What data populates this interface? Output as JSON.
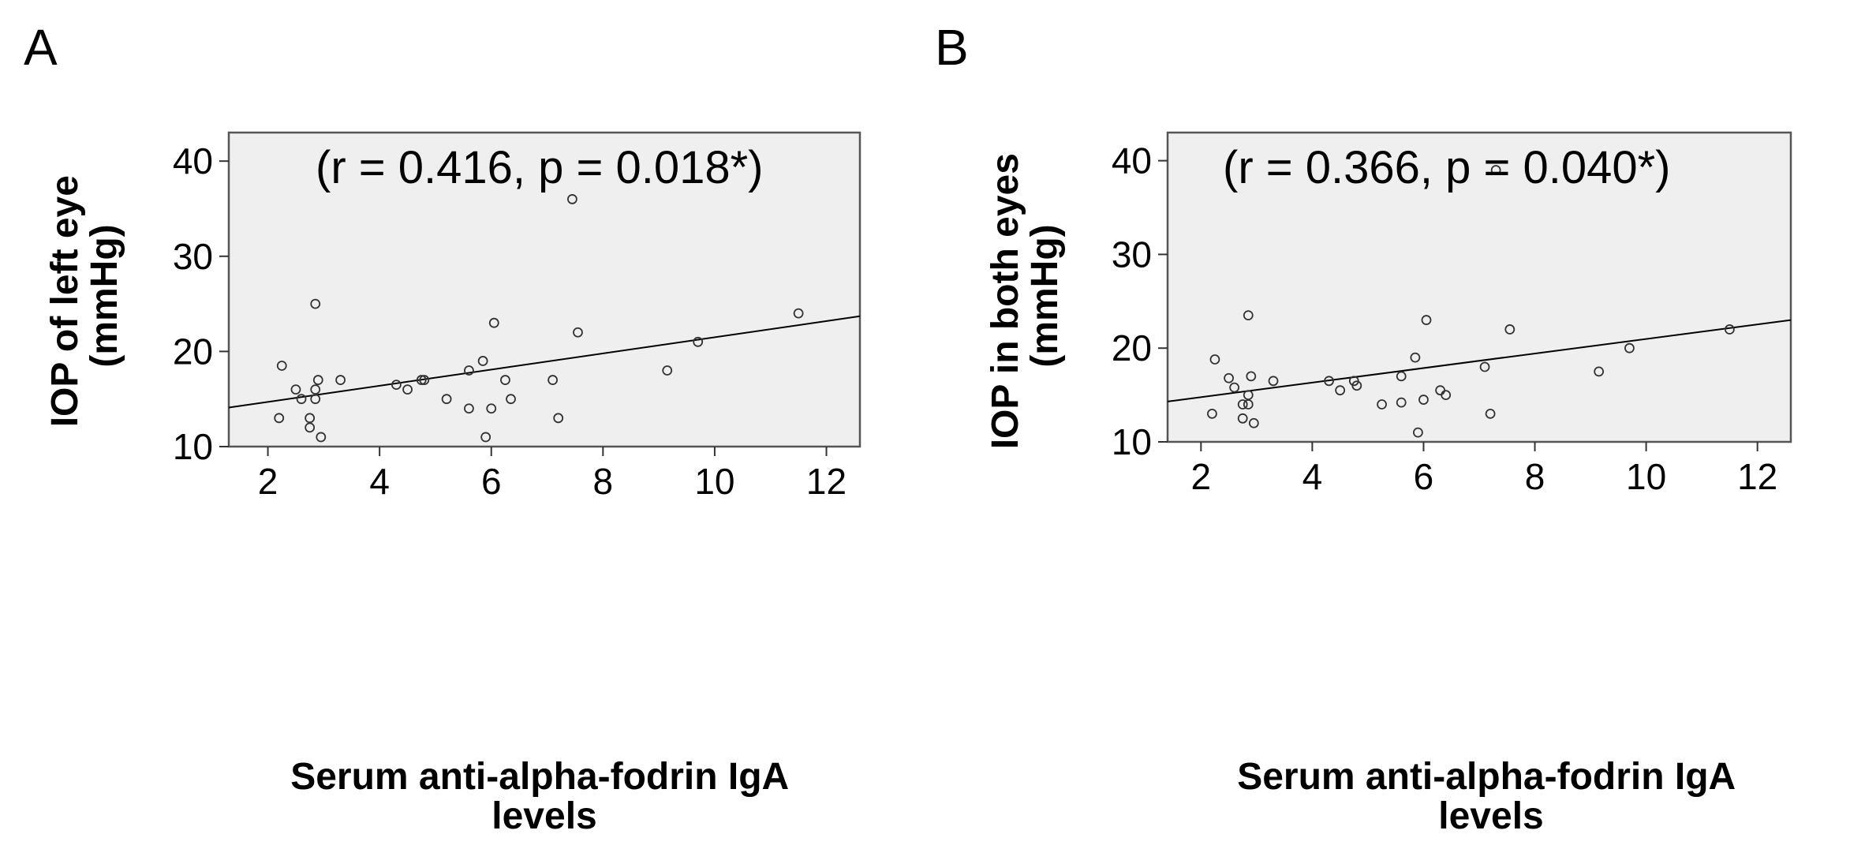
{
  "chart_data": [
    {
      "type": "scatter",
      "panel_label": "A",
      "annotation": "(r = 0.416, p = 0.018*)",
      "xlabel": "Serum anti-alpha-fodrin IgA levels",
      "xlabel_lines": [
        "Serum anti-alpha-fodrin IgA",
        "levels"
      ],
      "ylabel": "IOP of left eye (mmHg)",
      "ylabel_lines": [
        "IOP of left eye",
        "(mmHg)"
      ],
      "xlim": [
        1.3,
        12.6
      ],
      "ylim": [
        10,
        43
      ],
      "xticks": [
        2,
        4,
        6,
        8,
        10,
        12
      ],
      "yticks": [
        10,
        20,
        30,
        40
      ],
      "colors": {
        "plot_background": "#efefef",
        "marker": "#333333",
        "line": "#000000"
      },
      "fit_line": {
        "x": [
          1.3,
          12.6
        ],
        "y": [
          14.1,
          23.7
        ]
      },
      "points": [
        [
          2.2,
          13
        ],
        [
          2.25,
          18.5
        ],
        [
          2.5,
          16
        ],
        [
          2.6,
          15
        ],
        [
          2.75,
          13
        ],
        [
          2.75,
          12
        ],
        [
          2.85,
          25
        ],
        [
          2.85,
          16
        ],
        [
          2.85,
          15
        ],
        [
          2.9,
          17
        ],
        [
          2.95,
          11
        ],
        [
          3.3,
          17
        ],
        [
          4.3,
          16.5
        ],
        [
          4.5,
          16
        ],
        [
          4.75,
          17
        ],
        [
          4.8,
          17
        ],
        [
          5.2,
          15
        ],
        [
          5.6,
          18
        ],
        [
          5.6,
          14
        ],
        [
          5.85,
          19
        ],
        [
          5.9,
          11
        ],
        [
          6.0,
          14
        ],
        [
          6.05,
          23
        ],
        [
          6.25,
          17
        ],
        [
          6.35,
          15
        ],
        [
          7.1,
          17
        ],
        [
          7.2,
          13
        ],
        [
          7.45,
          36
        ],
        [
          7.55,
          22
        ],
        [
          9.15,
          18
        ],
        [
          9.7,
          21
        ],
        [
          11.5,
          24
        ]
      ]
    },
    {
      "type": "scatter",
      "panel_label": "B",
      "annotation": "(r = 0.366, p = 0.040*)",
      "xlabel": "Serum anti-alpha-fodrin IgA levels",
      "xlabel_lines": [
        "Serum anti-alpha-fodrin IgA",
        "levels"
      ],
      "ylabel": "IOP in both eyes (mmHg)",
      "ylabel_lines": [
        "IOP in both eyes",
        "(mmHg)"
      ],
      "xlim": [
        1.4,
        12.6
      ],
      "ylim": [
        10,
        43
      ],
      "xticks": [
        2,
        4,
        6,
        8,
        10,
        12
      ],
      "yticks": [
        10,
        20,
        30,
        40
      ],
      "colors": {
        "plot_background": "#efefef",
        "marker": "#333333",
        "line": "#000000"
      },
      "fit_line": {
        "x": [
          1.4,
          12.6
        ],
        "y": [
          14.3,
          23.0
        ]
      },
      "points": [
        [
          2.2,
          13
        ],
        [
          2.25,
          18.8
        ],
        [
          2.5,
          16.8
        ],
        [
          2.6,
          15.8
        ],
        [
          2.75,
          14
        ],
        [
          2.75,
          12.5
        ],
        [
          2.85,
          23.5
        ],
        [
          2.85,
          15
        ],
        [
          2.85,
          14
        ],
        [
          2.9,
          17
        ],
        [
          2.95,
          12
        ],
        [
          3.3,
          16.5
        ],
        [
          4.3,
          16.5
        ],
        [
          4.5,
          15.5
        ],
        [
          4.75,
          16.5
        ],
        [
          4.8,
          16
        ],
        [
          5.25,
          14
        ],
        [
          5.6,
          14.2
        ],
        [
          5.6,
          17
        ],
        [
          5.85,
          19
        ],
        [
          5.9,
          11
        ],
        [
          6.0,
          14.5
        ],
        [
          6.05,
          23
        ],
        [
          6.3,
          15.5
        ],
        [
          6.4,
          15
        ],
        [
          7.1,
          18
        ],
        [
          7.2,
          13
        ],
        [
          7.55,
          22
        ],
        [
          9.15,
          17.5
        ],
        [
          9.7,
          20
        ],
        [
          11.5,
          22
        ],
        [
          7.3,
          39
        ]
      ]
    }
  ]
}
